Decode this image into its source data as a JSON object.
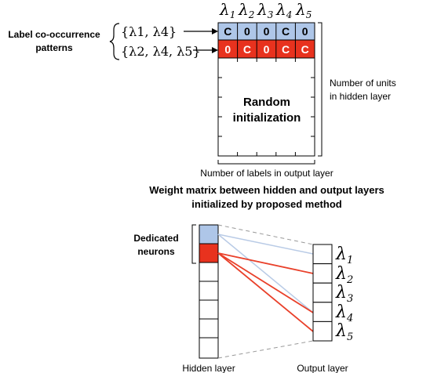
{
  "top": {
    "lambdas": [
      "λ1",
      "λ2",
      "λ3",
      "λ4",
      "λ5"
    ],
    "lambda_base": "λ",
    "lambda_subs": [
      "1",
      "2",
      "3",
      "4",
      "5"
    ],
    "label_cooccurrence": [
      "Label co-occurrence",
      "patterns"
    ],
    "pattern1_text": "{λ1, λ4}",
    "pattern2_text": "{λ2, λ4, λ5}",
    "row1_cells": [
      "C",
      "0",
      "0",
      "C",
      "0"
    ],
    "row2_cells": [
      "0",
      "C",
      "0",
      "C",
      "C"
    ],
    "random_init": [
      "Random",
      "initialization"
    ],
    "num_units": [
      "Number of units",
      "in hidden layer"
    ],
    "num_labels": "Number of labels in output layer",
    "colors": {
      "row1": "#aec6e8",
      "row2": "#e8321e",
      "row1_line": "#b9cbe6",
      "row2_line": "#e9402a"
    }
  },
  "title": [
    "Weight matrix between hidden and output layers",
    "initialized by proposed method"
  ],
  "bottom": {
    "dedicated": [
      "Dedicated",
      "neurons"
    ],
    "hidden_layer": "Hidden layer",
    "output_layer": "Output layer"
  }
}
